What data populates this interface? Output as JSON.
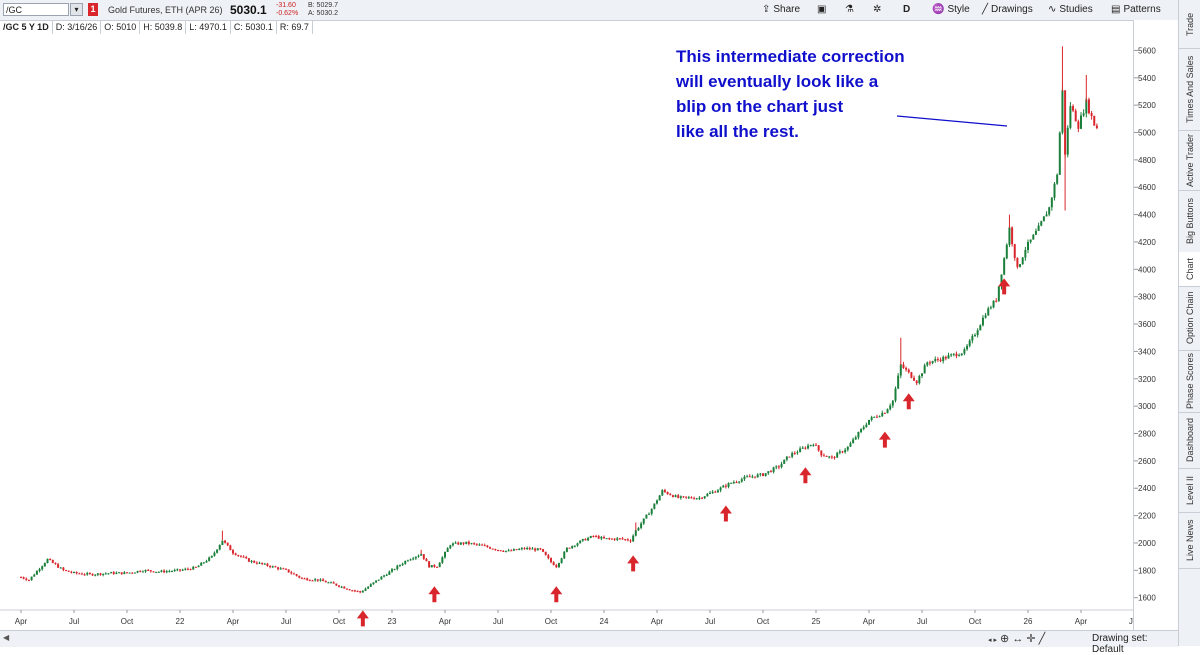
{
  "toolbar": {
    "symbol": "/GC",
    "badge": "1",
    "description": "Gold Futures, ETH (APR 26)",
    "last_price": "5030.1",
    "net_change": "-31.60",
    "pct_change": "-0.62%",
    "bid": "B: 5029.7",
    "ask": "A: 5030.2",
    "share_label": "Share",
    "aggregation_label": "D",
    "style_label": "Style",
    "drawings_label": "Drawings",
    "studies_label": "Studies",
    "patterns_label": "Patterns"
  },
  "info_bar": {
    "symbol_period": "/GC 5 Y 1D",
    "date": "D: 3/16/26",
    "open": "O: 5010",
    "high": "H: 5039.8",
    "low": "L: 4970.1",
    "close": "C: 5030.1",
    "range": "R: 69.7"
  },
  "annotation": {
    "lines": [
      "This intermediate correction",
      "will eventually look like a",
      "blip on the chart just",
      "like all the rest."
    ],
    "color": "#1010cc"
  },
  "sidebar": {
    "tabs": [
      "Trade",
      "Times And Sales",
      "Active Trader",
      "Big Buttons",
      "Chart",
      "Option Chain",
      "Phase Scores",
      "Dashboard",
      "Level II",
      "Live News"
    ],
    "active": "Chart"
  },
  "bottom_bar": {
    "drawing_set": "Drawing set: Default"
  },
  "chart_data": {
    "type": "candlestick",
    "up_color": "#1a7f3a",
    "down_color": "#d9262c",
    "arrow_color": "#d9262c",
    "y_ticks": [
      1600,
      1800,
      2000,
      2200,
      2400,
      2600,
      2800,
      3000,
      3200,
      3400,
      3600,
      3800,
      4000,
      4200,
      4400,
      4600,
      4800,
      5000,
      5200,
      5400,
      5600
    ],
    "ylim": [
      1510,
      5720
    ],
    "x_ticks": [
      "Apr",
      "Jul",
      "Oct",
      "22",
      "Apr",
      "Jul",
      "Oct",
      "23",
      "Apr",
      "Jul",
      "Oct",
      "24",
      "Apr",
      "Jul",
      "Oct",
      "25",
      "Apr",
      "Jul",
      "Oct",
      "26",
      "Apr",
      "Jul"
    ],
    "price_path": [
      [
        0,
        1750
      ],
      [
        0.15,
        1730
      ],
      [
        0.5,
        1880
      ],
      [
        0.8,
        1800
      ],
      [
        1.0,
        1780
      ],
      [
        1.3,
        1770
      ],
      [
        1.7,
        1780
      ],
      [
        2.0,
        1780
      ],
      [
        2.3,
        1800
      ],
      [
        2.6,
        1790
      ],
      [
        3.0,
        1800
      ],
      [
        3.3,
        1820
      ],
      [
        3.6,
        1900
      ],
      [
        3.8,
        2020
      ],
      [
        4.0,
        1930
      ],
      [
        4.3,
        1870
      ],
      [
        4.6,
        1840
      ],
      [
        5.0,
        1800
      ],
      [
        5.3,
        1740
      ],
      [
        5.6,
        1730
      ],
      [
        5.9,
        1700
      ],
      [
        6.2,
        1660
      ],
      [
        6.4,
        1640
      ],
      [
        6.55,
        1680
      ],
      [
        6.8,
        1750
      ],
      [
        7.0,
        1800
      ],
      [
        7.3,
        1880
      ],
      [
        7.55,
        1920
      ],
      [
        7.7,
        1830
      ],
      [
        7.85,
        1830
      ],
      [
        8.1,
        1990
      ],
      [
        8.4,
        2000
      ],
      [
        8.7,
        1980
      ],
      [
        9.0,
        1950
      ],
      [
        9.2,
        1940
      ],
      [
        9.5,
        1960
      ],
      [
        9.8,
        1950
      ],
      [
        10.0,
        1860
      ],
      [
        10.1,
        1830
      ],
      [
        10.3,
        1960
      ],
      [
        10.6,
        2020
      ],
      [
        10.8,
        2050
      ],
      [
        11.0,
        2030
      ],
      [
        11.3,
        2030
      ],
      [
        11.5,
        2020
      ],
      [
        11.6,
        2090
      ],
      [
        11.9,
        2250
      ],
      [
        12.1,
        2380
      ],
      [
        12.4,
        2330
      ],
      [
        12.8,
        2330
      ],
      [
        13.1,
        2380
      ],
      [
        13.4,
        2440
      ],
      [
        13.7,
        2480
      ],
      [
        14.0,
        2500
      ],
      [
        14.3,
        2560
      ],
      [
        14.5,
        2640
      ],
      [
        14.7,
        2680
      ],
      [
        14.95,
        2730
      ],
      [
        15.1,
        2650
      ],
      [
        15.3,
        2620
      ],
      [
        15.6,
        2700
      ],
      [
        16.0,
        2900
      ],
      [
        16.3,
        2960
      ],
      [
        16.45,
        3040
      ],
      [
        16.6,
        3300
      ],
      [
        16.75,
        3240
      ],
      [
        16.9,
        3180
      ],
      [
        17.1,
        3320
      ],
      [
        17.4,
        3350
      ],
      [
        17.8,
        3400
      ],
      [
        18.0,
        3530
      ],
      [
        18.2,
        3680
      ],
      [
        18.4,
        3780
      ],
      [
        18.55,
        4080
      ],
      [
        18.65,
        4300
      ],
      [
        18.8,
        4000
      ],
      [
        18.95,
        4150
      ],
      [
        19.2,
        4300
      ],
      [
        19.4,
        4450
      ],
      [
        19.55,
        4700
      ],
      [
        19.65,
        5300
      ],
      [
        19.7,
        4850
      ],
      [
        19.8,
        5200
      ],
      [
        19.95,
        5050
      ],
      [
        20.1,
        5220
      ],
      [
        20.25,
        5060
      ],
      [
        20.32,
        5030
      ]
    ],
    "spikes": [
      [
        3.8,
        2090
      ],
      [
        7.55,
        1950
      ],
      [
        11.6,
        2150
      ],
      [
        16.6,
        3500
      ],
      [
        18.65,
        4400
      ],
      [
        19.65,
        5630
      ],
      [
        19.7,
        4430
      ],
      [
        20.1,
        5420
      ]
    ],
    "arrows_at": [
      6.45,
      7.8,
      10.1,
      11.55,
      13.3,
      14.8,
      16.3,
      16.75,
      18.55
    ]
  }
}
